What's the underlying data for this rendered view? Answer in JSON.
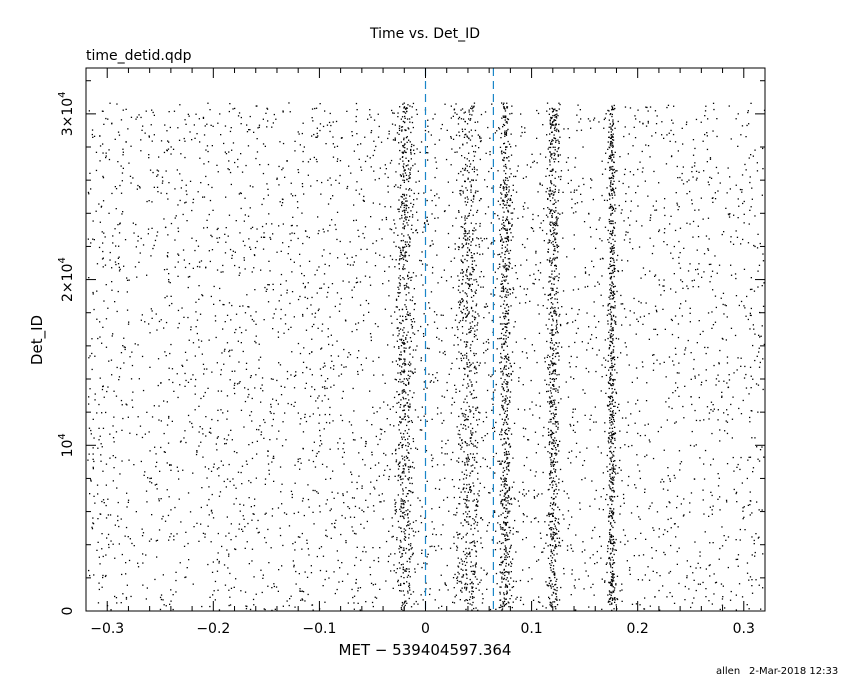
{
  "header": {
    "title": "Time vs. Det_ID",
    "subtitle": "time_detid.qdp"
  },
  "footer": {
    "user": "allen",
    "timestamp": "2-Mar-2018 12:33"
  },
  "chart_data": {
    "type": "scatter",
    "title": "Time vs. Det_ID",
    "subtitle": "time_detid.qdp",
    "xlabel": "MET − 539404597.364",
    "ylabel": "Det_ID",
    "xlim": [
      -0.32,
      0.32
    ],
    "ylim": [
      0,
      32768
    ],
    "grid": false,
    "x_ticks": [
      {
        "value": -0.3,
        "label": "−0.3"
      },
      {
        "value": -0.2,
        "label": "−0.2"
      },
      {
        "value": -0.1,
        "label": "−0.1"
      },
      {
        "value": 0,
        "label": "0"
      },
      {
        "value": 0.1,
        "label": "0.1"
      },
      {
        "value": 0.2,
        "label": "0.2"
      },
      {
        "value": 0.3,
        "label": "0.3"
      }
    ],
    "y_ticks": [
      {
        "value": 0,
        "mantissa": "0",
        "exponent": ""
      },
      {
        "value": 10000,
        "mantissa": "10",
        "exponent": "4"
      },
      {
        "value": 20000,
        "mantissa": "2×10",
        "exponent": "4"
      },
      {
        "value": 30000,
        "mantissa": "3×10",
        "exponent": "4"
      }
    ],
    "reference_lines": [
      {
        "x": 0.0,
        "style": "dashed",
        "color": "#1a86c8"
      },
      {
        "x": 0.064,
        "style": "dashed",
        "color": "#1a86c8"
      }
    ],
    "colors": {
      "points": "#000000",
      "frame": "#000000"
    },
    "series": [
      {
        "x_range": [
          -0.32,
          0.32
        ],
        "y_range": [
          0,
          30700
        ],
        "description_of_density": "uniform background events across the full time range",
        "n_points": 4200,
        "clusters": []
      },
      {
        "x_range": [
          -0.06,
          0.2
        ],
        "y_range": [
          0,
          30700
        ],
        "n_points": 3200,
        "clusters": [
          {
            "x_center": -0.02,
            "x_width": 0.018
          },
          {
            "x_center": 0.04,
            "x_width": 0.025
          },
          {
            "x_center": 0.075,
            "x_width": 0.012
          },
          {
            "x_center": 0.12,
            "x_width": 0.012
          },
          {
            "x_center": 0.175,
            "x_width": 0.008
          }
        ]
      }
    ]
  }
}
